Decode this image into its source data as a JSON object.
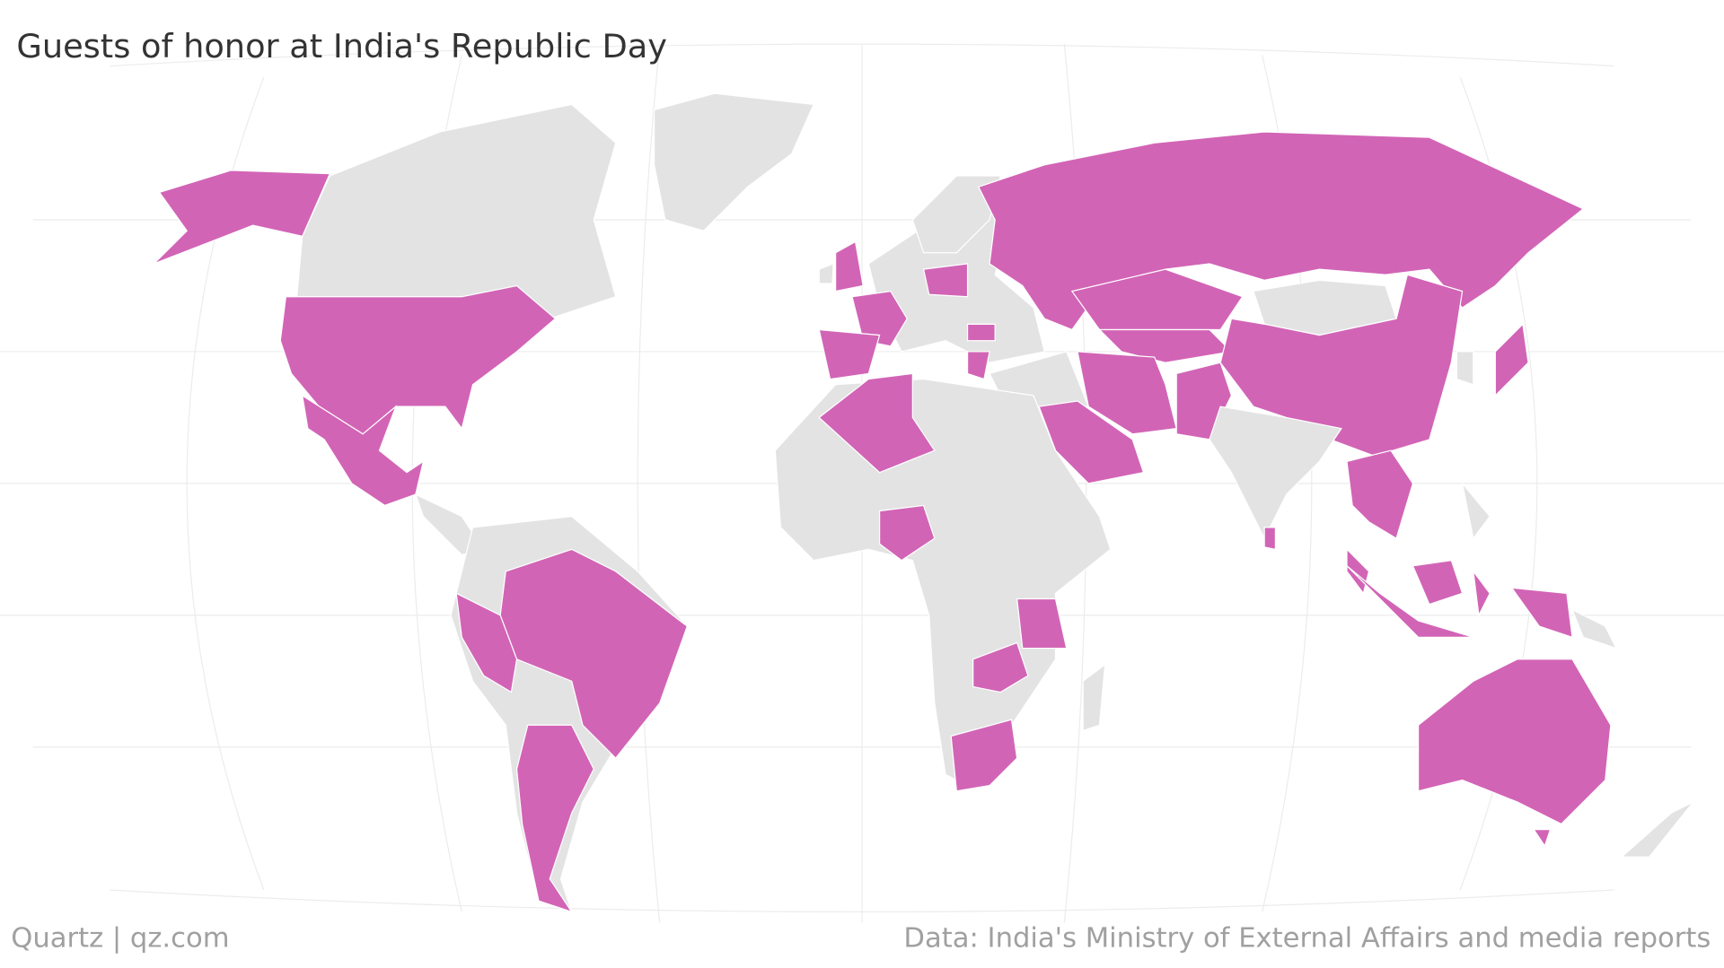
{
  "header": {
    "title": "Guests of honor at India's Republic Day"
  },
  "footer": {
    "source_brand": "Quartz | qz.com",
    "credit": "Data: India's Ministry of External Affairs and media reports"
  }
}
